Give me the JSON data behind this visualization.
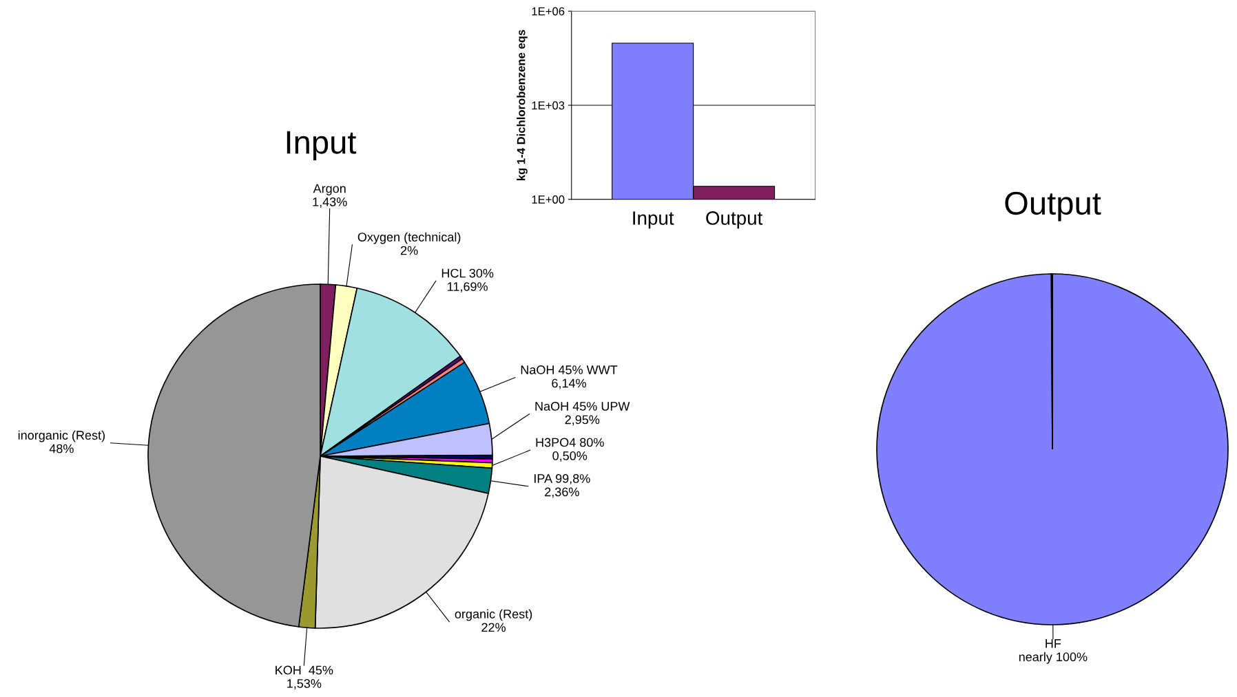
{
  "chart_data": [
    {
      "type": "pie",
      "title": "Input",
      "categories": [
        "Argon",
        "Oxygen (technical)",
        "HCL 30%",
        null,
        null,
        "NaOH 45% WWT",
        "NaOH 45% UPW",
        null,
        null,
        "H3PO4 80%",
        "IPA 99,8%",
        "organic (Rest)",
        "KOH  45%",
        "inorganic (Rest)"
      ],
      "values": [
        1.43,
        2,
        11.69,
        0.3,
        0.4,
        6.14,
        2.95,
        0.35,
        0.35,
        0.5,
        2.36,
        22,
        1.53,
        48
      ],
      "colors": [
        "#7f1f5f",
        "#ffffc0",
        "#a0e0e0",
        "#600080",
        "#ff8080",
        "#0080c0",
        "#c0c0ff",
        "#000080",
        "#ff00ff",
        "#ffff00",
        "#008080",
        "#e0e0e0",
        "#9a9a30",
        "#969696"
      ],
      "value_labels": [
        "1,43%",
        "2%",
        "11,69%",
        null,
        null,
        "6,14%",
        "2,95%",
        null,
        null,
        "0,50%",
        "2,36%",
        "22%",
        "1,53%",
        "48%"
      ]
    },
    {
      "type": "bar",
      "categories": [
        "Input",
        "Output"
      ],
      "values": [
        95000,
        2.6
      ],
      "colors": [
        "#8080ff",
        "#7f1f5f"
      ],
      "ylabel": "kg 1-4 Dichlorobenzene eqs",
      "log": "y",
      "ylim": [
        1,
        1000000
      ],
      "yticks": [
        {
          "value": 1,
          "label": "1E+00"
        },
        {
          "value": 1000,
          "label": "1E+03"
        },
        {
          "value": 1000000,
          "label": "1E+06"
        }
      ],
      "grid": "y"
    },
    {
      "type": "pie",
      "title": "Output",
      "categories": [
        "HF",
        null
      ],
      "values": [
        99.9,
        0.1
      ],
      "colors": [
        "#8080ff",
        "#8080ff"
      ],
      "value_labels": [
        "nearly 100%",
        null
      ]
    }
  ]
}
